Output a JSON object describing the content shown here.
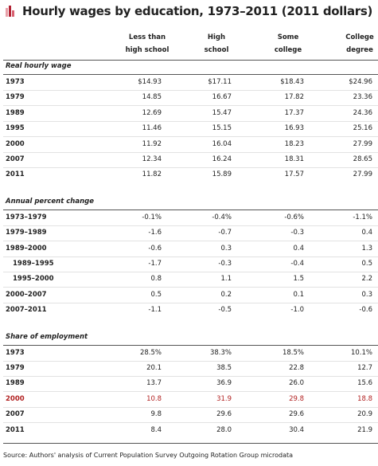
{
  "title": "Hourly wages by education, 1973–2011 (2011 dollars)",
  "columns": [
    [
      "Less than",
      "high school"
    ],
    [
      "High",
      "school"
    ],
    [
      "Some",
      "college"
    ],
    [
      "College",
      "degree"
    ]
  ],
  "sections": [
    {
      "title": "Real hourly wage",
      "rows": [
        {
          "label": "1973",
          "values": [
            "$14.93",
            "$17.11",
            "$18.43",
            "$24.96"
          ]
        },
        {
          "label": "1979",
          "values": [
            "14.85",
            "16.67",
            "17.82",
            "23.36"
          ]
        },
        {
          "label": "1989",
          "values": [
            "12.69",
            "15.47",
            "17.37",
            "24.36"
          ]
        },
        {
          "label": "1995",
          "values": [
            "11.46",
            "15.15",
            "16.93",
            "25.16"
          ]
        },
        {
          "label": "2000",
          "values": [
            "11.92",
            "16.04",
            "18.23",
            "27.99"
          ]
        },
        {
          "label": "2007",
          "values": [
            "12.34",
            "16.24",
            "18.31",
            "28.65"
          ]
        },
        {
          "label": "2011",
          "values": [
            "11.82",
            "15.89",
            "17.57",
            "27.99"
          ]
        }
      ]
    },
    {
      "title": "Annual percent change",
      "rows": [
        {
          "label": "1973–1979",
          "values": [
            "-0.1%",
            "-0.4%",
            "-0.6%",
            "-1.1%"
          ]
        },
        {
          "label": "1979–1989",
          "values": [
            "-1.6",
            "-0.7",
            "-0.3",
            "0.4"
          ]
        },
        {
          "label": "1989–2000",
          "values": [
            "-0.6",
            "0.3",
            "0.4",
            "1.3"
          ]
        },
        {
          "label": "1989–1995",
          "indent": true,
          "values": [
            "-1.7",
            "-0.3",
            "-0.4",
            "0.5"
          ]
        },
        {
          "label": "1995–2000",
          "indent": true,
          "values": [
            "0.8",
            "1.1",
            "1.5",
            "2.2"
          ]
        },
        {
          "label": "2000–2007",
          "values": [
            "0.5",
            "0.2",
            "0.1",
            "0.3"
          ]
        },
        {
          "label": "2007–2011",
          "values": [
            "-1.1",
            "-0.5",
            "-1.0",
            "-0.6"
          ]
        }
      ]
    },
    {
      "title": "Share of employment",
      "rows": [
        {
          "label": "1973",
          "values": [
            "28.5%",
            "38.3%",
            "18.5%",
            "10.1%"
          ]
        },
        {
          "label": "1979",
          "values": [
            "20.1",
            "38.5",
            "22.8",
            "12.7"
          ]
        },
        {
          "label": "1989",
          "values": [
            "13.7",
            "36.9",
            "26.0",
            "15.6"
          ]
        },
        {
          "label": "2000",
          "color": "#b22222",
          "values": [
            "10.8",
            "31.9",
            "29.8",
            "18.8"
          ]
        },
        {
          "label": "2007",
          "values": [
            "9.8",
            "29.6",
            "29.6",
            "20.9"
          ]
        },
        {
          "label": "2011",
          "values": [
            "8.4",
            "28.0",
            "30.4",
            "21.9"
          ]
        }
      ]
    }
  ],
  "source": "Source: Authors' analysis of Current Population Survey Outgoing Rotation Group microdata"
}
